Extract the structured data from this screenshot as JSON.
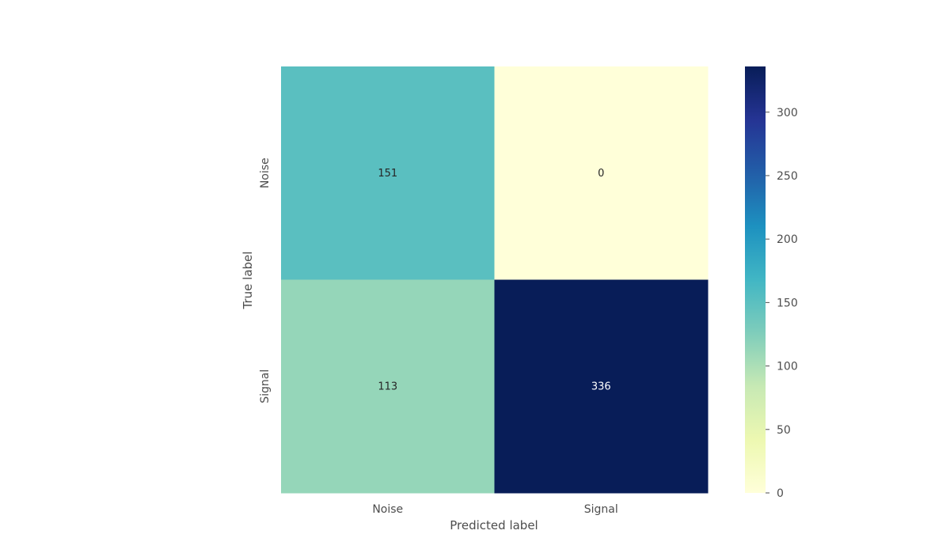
{
  "chart_data": {
    "type": "heatmap",
    "title": "",
    "xlabel": "Predicted label",
    "ylabel": "True label",
    "x_categories": [
      "Noise",
      "Signal"
    ],
    "y_categories": [
      "Noise",
      "Signal"
    ],
    "values": [
      [
        151,
        0
      ],
      [
        113,
        336
      ]
    ],
    "colormap": "YlGnBu",
    "colorbar": {
      "min": 0,
      "max": 336,
      "ticks": [
        0,
        50,
        100,
        150,
        200,
        250,
        300
      ]
    },
    "colors": {
      "cell_text_light": "#ffffff",
      "cell_text_dark": "#262626",
      "axis_text": "#4d4d4d",
      "tick_mark": "#4d4d4d"
    }
  }
}
